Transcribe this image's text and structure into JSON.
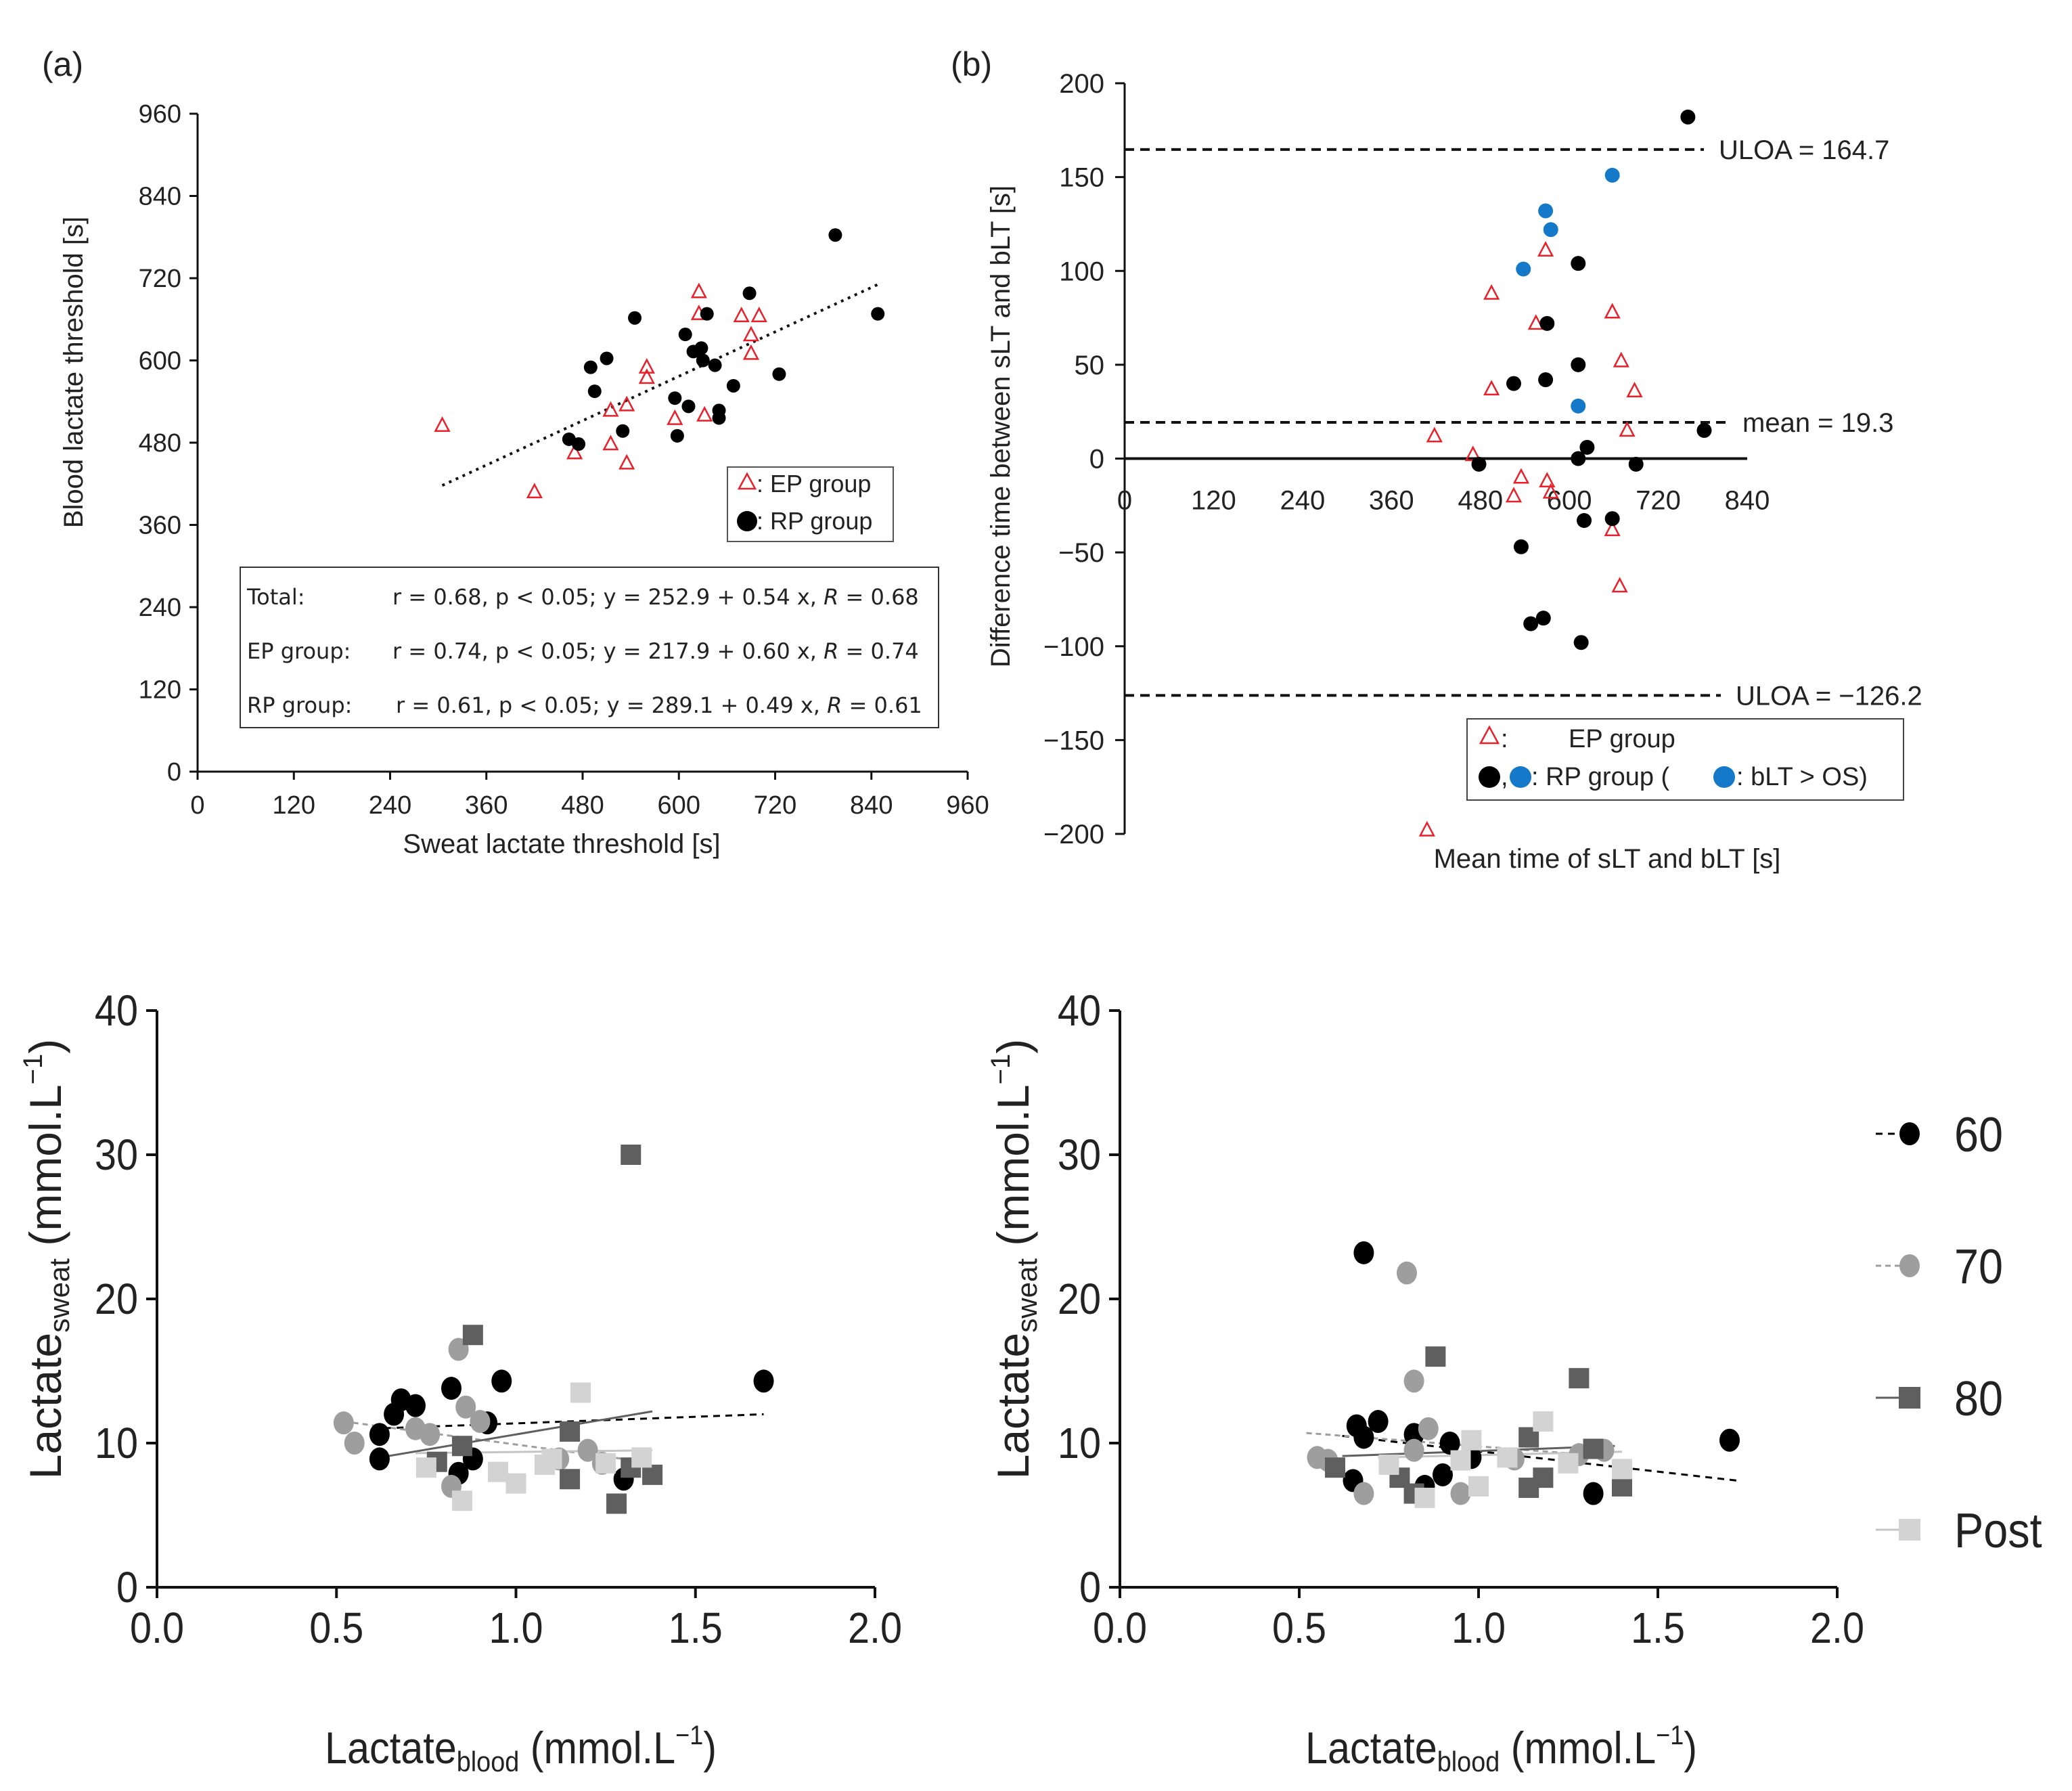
{
  "chart_data": [
    {
      "id": "a",
      "type": "scatter",
      "panel_label": "(a)",
      "xlabel": "Sweat lactate threshold [s]",
      "ylabel": "Blood lactate threshold [s]",
      "xlim": [
        0,
        960
      ],
      "ylim": [
        0,
        960
      ],
      "xticks": [
        0,
        120,
        240,
        360,
        480,
        600,
        720,
        840,
        960
      ],
      "yticks": [
        0,
        120,
        240,
        360,
        480,
        600,
        720,
        840,
        960
      ],
      "legend": [
        {
          "marker": "triangle",
          "label": ": EP group"
        },
        {
          "marker": "circle",
          "label": ": RP group"
        }
      ],
      "stats_box": [
        {
          "group": "Total:",
          "text": "r = 0.68, p < 0.05; y = 252.9 + 0.54 x, ",
          "r_symbol": "R",
          "r_value": " = 0.68"
        },
        {
          "group": "EP group:",
          "text": "r = 0.74, p < 0.05; y = 217.9 + 0.60 x, ",
          "r_symbol": "R",
          "r_value": " = 0.74"
        },
        {
          "group": "RP group:",
          "text": "r = 0.61, p < 0.05; y = 289.1 + 0.49 x, ",
          "r_symbol": "R",
          "r_value": " = 0.61"
        }
      ],
      "fit_line": {
        "intercept": 252.9,
        "slope": 0.54,
        "x_range": [
          305,
          850
        ]
      },
      "series": [
        {
          "name": "EP group",
          "marker": "triangle",
          "color": "#e8202a",
          "points": [
            [
              305,
              505
            ],
            [
              420,
              408
            ],
            [
              470,
              465
            ],
            [
              515,
              478
            ],
            [
              515,
              527
            ],
            [
              535,
              450
            ],
            [
              535,
              535
            ],
            [
              560,
              575
            ],
            [
              560,
              590
            ],
            [
              595,
              515
            ],
            [
              625,
              700
            ],
            [
              625,
              668
            ],
            [
              632,
              520
            ],
            [
              678,
              665
            ],
            [
              690,
              637
            ],
            [
              690,
              610
            ],
            [
              700,
              665
            ]
          ]
        },
        {
          "name": "RP group",
          "marker": "circle",
          "color": "#000000",
          "points": [
            [
              463,
              485
            ],
            [
              475,
              478
            ],
            [
              490,
              590
            ],
            [
              495,
              555
            ],
            [
              510,
              603
            ],
            [
              530,
              497
            ],
            [
              545,
              662
            ],
            [
              595,
              545
            ],
            [
              598,
              490
            ],
            [
              608,
              638
            ],
            [
              612,
              533
            ],
            [
              618,
              613
            ],
            [
              628,
              618
            ],
            [
              630,
              600
            ],
            [
              635,
              668
            ],
            [
              645,
              593
            ],
            [
              650,
              527
            ],
            [
              650,
              516
            ],
            [
              668,
              563
            ],
            [
              688,
              698
            ],
            [
              725,
              580
            ],
            [
              795,
              783
            ],
            [
              848,
              668
            ]
          ]
        }
      ]
    },
    {
      "id": "b",
      "type": "scatter",
      "panel_label": "(b)",
      "xlabel": "Mean time of sLT and bLT [s]",
      "ylabel": "Difference time between sLT and bLT [s]",
      "xlim": [
        0,
        840
      ],
      "ylim": [
        -200,
        200
      ],
      "xticks": [
        0,
        120,
        240,
        360,
        480,
        600,
        720,
        840
      ],
      "yticks": [
        -200,
        -150,
        -100,
        -50,
        0,
        50,
        100,
        150,
        200
      ],
      "yticklabels": [
        "−200",
        "−150",
        "−100",
        "−50",
        "0",
        "50",
        "100",
        "150",
        "200"
      ],
      "reference_lines": [
        {
          "value": 164.7,
          "label": "ULOA = 164.7"
        },
        {
          "value": 19.3,
          "label": "mean = 19.3"
        },
        {
          "value": -126.2,
          "label": "ULOA = −126.2"
        }
      ],
      "legend": [
        {
          "label": "EP group",
          "prefix": ":"
        },
        {
          "label": ": RP group (",
          "suffix": ": bLT > OS)"
        }
      ],
      "series": [
        {
          "name": "EP group",
          "marker": "triangle",
          "color": "#e8202a",
          "points": [
            [
              418,
              12
            ],
            [
              470,
              2
            ],
            [
              495,
              88
            ],
            [
              495,
              37
            ],
            [
              525,
              -20
            ],
            [
              535,
              -10
            ],
            [
              555,
              72
            ],
            [
              568,
              111
            ],
            [
              570,
              -12
            ],
            [
              575,
              -18
            ],
            [
              658,
              78
            ],
            [
              658,
              -38
            ],
            [
              668,
              -68
            ],
            [
              670,
              52
            ],
            [
              678,
              15
            ],
            [
              688,
              36
            ],
            [
              408,
              -198
            ]
          ]
        },
        {
          "name": "RP group",
          "marker": "circle",
          "color": "#000000",
          "points": [
            [
              478,
              -3
            ],
            [
              525,
              40
            ],
            [
              535,
              -47
            ],
            [
              548,
              -88
            ],
            [
              565,
              -85
            ],
            [
              568,
              42
            ],
            [
              570,
              72
            ],
            [
              612,
              104
            ],
            [
              612,
              50
            ],
            [
              612,
              0
            ],
            [
              616,
              -98
            ],
            [
              620,
              -33
            ],
            [
              624,
              6
            ],
            [
              658,
              -32
            ],
            [
              690,
              -3
            ],
            [
              782,
              15
            ],
            [
              760,
              182
            ]
          ]
        },
        {
          "name": "RP group (bLT > OS)",
          "marker": "circle",
          "color": "#1479c9",
          "points": [
            [
              538,
              101
            ],
            [
              568,
              132
            ],
            [
              575,
              122
            ],
            [
              612,
              28
            ],
            [
              658,
              151
            ]
          ]
        }
      ]
    },
    {
      "id": "c",
      "type": "scatter",
      "xlabel_main": "Lactate",
      "xlabel_sub": "blood",
      "xlabel_unit": " (mmol.L",
      "xlabel_sup": "−1",
      "xlabel_close": ")",
      "ylabel_main": "Lactate",
      "ylabel_sub": "sweat",
      "ylabel_unit": " (mmol.L",
      "ylabel_sup": "−1",
      "ylabel_close": ")",
      "xlim": [
        0,
        2
      ],
      "ylim": [
        0,
        40
      ],
      "xticks": [
        0,
        0.5,
        1,
        1.5,
        2
      ],
      "xticklabels": [
        "0.0",
        "0.5",
        "1.0",
        "1.5",
        "2.0"
      ],
      "yticks": [
        0,
        10,
        20,
        30,
        40
      ],
      "series": [
        {
          "name": "60",
          "marker": "circle",
          "color": "#000000",
          "points": [
            [
              0.62,
              8.9
            ],
            [
              0.62,
              10.6
            ],
            [
              0.66,
              12.0
            ],
            [
              0.68,
              13.0
            ],
            [
              0.72,
              12.6
            ],
            [
              0.82,
              13.8
            ],
            [
              0.84,
              7.9
            ],
            [
              0.88,
              8.9
            ],
            [
              0.92,
              11.4
            ],
            [
              0.96,
              14.3
            ],
            [
              1.3,
              7.5
            ],
            [
              1.69,
              14.3
            ]
          ],
          "fit": [
            [
              0.6,
              11.0
            ],
            [
              1.69,
              12.0
            ]
          ],
          "dash": "10 8"
        },
        {
          "name": "70",
          "marker": "circle",
          "color": "#9e9e9e",
          "points": [
            [
              0.52,
              11.4
            ],
            [
              0.55,
              10.0
            ],
            [
              0.72,
              11.0
            ],
            [
              0.76,
              10.6
            ],
            [
              0.82,
              7.0
            ],
            [
              0.84,
              16.5
            ],
            [
              0.86,
              12.5
            ],
            [
              0.9,
              11.5
            ],
            [
              1.12,
              8.9
            ],
            [
              1.2,
              9.5
            ],
            [
              1.24,
              8.6
            ]
          ],
          "fit": [
            [
              0.52,
              11.5
            ],
            [
              1.3,
              8.9
            ]
          ],
          "dash": "8 6"
        },
        {
          "name": "80",
          "marker": "square",
          "color": "#5f5f5f",
          "points": [
            [
              0.88,
              17.5
            ],
            [
              0.78,
              8.7
            ],
            [
              0.85,
              9.8
            ],
            [
              1.15,
              10.8
            ],
            [
              1.15,
              7.5
            ],
            [
              1.28,
              5.8
            ],
            [
              1.32,
              30.0
            ],
            [
              1.32,
              8.3
            ],
            [
              1.38,
              7.8
            ]
          ],
          "fit": [
            [
              0.62,
              9.0
            ],
            [
              1.38,
              12.2
            ]
          ],
          "dash": ""
        },
        {
          "name": "Post",
          "marker": "square",
          "color": "#d3d3d3",
          "points": [
            [
              0.75,
              8.3
            ],
            [
              0.85,
              6.0
            ],
            [
              1.0,
              7.2
            ],
            [
              1.08,
              8.5
            ],
            [
              1.18,
              13.5
            ],
            [
              1.1,
              8.9
            ],
            [
              1.25,
              8.6
            ],
            [
              1.35,
              9.0
            ],
            [
              0.95,
              8.0
            ]
          ],
          "fit": [
            [
              0.72,
              9.3
            ],
            [
              1.38,
              9.5
            ]
          ],
          "dash": ""
        }
      ]
    },
    {
      "id": "d",
      "type": "scatter",
      "xlabel_main": "Lactate",
      "xlabel_sub": "blood",
      "xlabel_unit": " (mmol.L",
      "xlabel_sup": "−1",
      "xlabel_close": ")",
      "ylabel_main": "Lactate",
      "ylabel_sub": "sweat",
      "ylabel_unit": " (mmol.L",
      "ylabel_sup": "−1",
      "ylabel_close": ")",
      "xlim": [
        0,
        2
      ],
      "ylim": [
        0,
        40
      ],
      "xticks": [
        0,
        0.5,
        1,
        1.5,
        2
      ],
      "xticklabels": [
        "0.0",
        "0.5",
        "1.0",
        "1.5",
        "2.0"
      ],
      "yticks": [
        0,
        10,
        20,
        30,
        40
      ],
      "series": [
        {
          "name": "60",
          "marker": "circle",
          "color": "#000000",
          "points": [
            [
              0.66,
              11.2
            ],
            [
              0.68,
              10.4
            ],
            [
              0.72,
              11.5
            ],
            [
              0.68,
              23.2
            ],
            [
              0.65,
              7.4
            ],
            [
              0.82,
              10.6
            ],
            [
              0.85,
              7.0
            ],
            [
              0.9,
              7.8
            ],
            [
              0.92,
              10.0
            ],
            [
              0.98,
              9.0
            ],
            [
              1.32,
              6.5
            ],
            [
              1.7,
              10.2
            ]
          ],
          "fit": [
            [
              0.62,
              10.5
            ],
            [
              1.72,
              7.4
            ]
          ],
          "dash": "10 8"
        },
        {
          "name": "70",
          "marker": "circle",
          "color": "#9e9e9e",
          "points": [
            [
              0.55,
              9.0
            ],
            [
              0.58,
              8.8
            ],
            [
              0.68,
              6.5
            ],
            [
              0.8,
              21.8
            ],
            [
              0.82,
              14.3
            ],
            [
              0.82,
              9.5
            ],
            [
              0.86,
              11.0
            ],
            [
              0.95,
              6.5
            ],
            [
              1.1,
              8.9
            ],
            [
              1.28,
              9.2
            ],
            [
              1.35,
              9.5
            ]
          ],
          "fit": [
            [
              0.52,
              10.7
            ],
            [
              1.3,
              9.2
            ]
          ],
          "dash": "8 6"
        },
        {
          "name": "80",
          "marker": "square",
          "color": "#5f5f5f",
          "points": [
            [
              0.6,
              8.3
            ],
            [
              0.78,
              7.6
            ],
            [
              0.88,
              16.0
            ],
            [
              0.82,
              6.5
            ],
            [
              1.14,
              10.4
            ],
            [
              1.14,
              6.9
            ],
            [
              1.18,
              7.6
            ],
            [
              1.28,
              14.5
            ],
            [
              1.32,
              9.6
            ],
            [
              1.4,
              7.0
            ]
          ],
          "fit": [
            [
              0.62,
              9.1
            ],
            [
              1.38,
              9.8
            ]
          ],
          "dash": ""
        },
        {
          "name": "Post",
          "marker": "square",
          "color": "#d3d3d3",
          "points": [
            [
              0.75,
              8.5
            ],
            [
              0.85,
              6.2
            ],
            [
              0.98,
              10.2
            ],
            [
              1.0,
              7.0
            ],
            [
              1.08,
              9.0
            ],
            [
              1.18,
              11.5
            ],
            [
              1.25,
              8.6
            ],
            [
              1.4,
              8.2
            ],
            [
              0.95,
              8.8
            ]
          ],
          "fit": [
            [
              0.72,
              9.0
            ],
            [
              1.4,
              9.4
            ]
          ],
          "dash": ""
        }
      ]
    }
  ],
  "legend_cd": {
    "items": [
      {
        "label": "60",
        "marker": "circle",
        "color": "#000000",
        "dash": "10 8"
      },
      {
        "label": "70",
        "marker": "circle",
        "color": "#9e9e9e",
        "dash": "8 6"
      },
      {
        "label": "80",
        "marker": "square",
        "color": "#5f5f5f",
        "dash": ""
      },
      {
        "label": "Post",
        "marker": "square",
        "color": "#d3d3d3",
        "dash": ""
      }
    ]
  }
}
